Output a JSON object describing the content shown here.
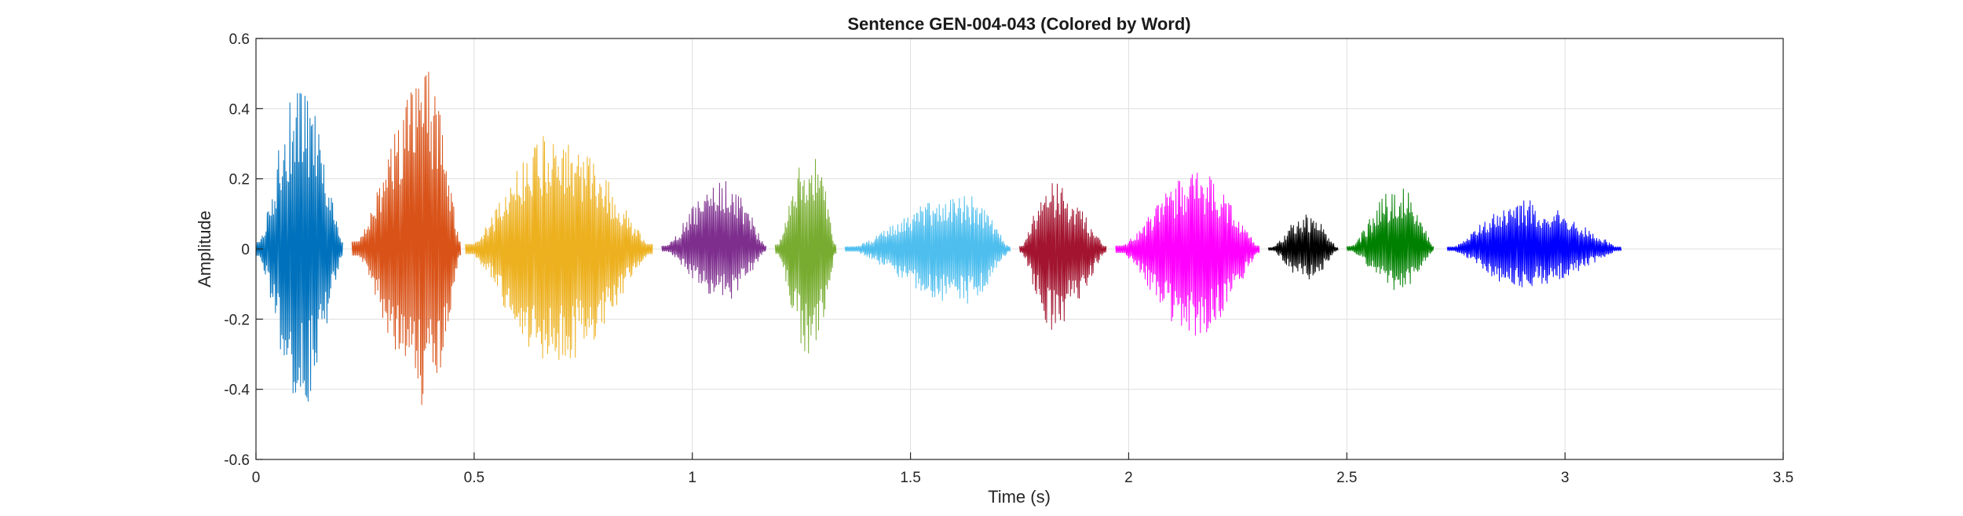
{
  "chart_data": {
    "type": "line",
    "title": "Sentence GEN-004-043 (Colored by Word)",
    "xlabel": "Time (s)",
    "ylabel": "Amplitude",
    "xlim": [
      0,
      3.5
    ],
    "ylim": [
      -0.6,
      0.6
    ],
    "xticks": [
      0,
      0.5,
      1,
      1.5,
      2,
      2.5,
      3,
      3.5
    ],
    "xtick_labels": [
      "0",
      "0.5",
      "1",
      "1.5",
      "2",
      "2.5",
      "3",
      "3.5"
    ],
    "yticks": [
      -0.6,
      -0.4,
      -0.2,
      0,
      0.2,
      0.4,
      0.6
    ],
    "ytick_labels": [
      "-0.6",
      "-0.4",
      "-0.2",
      "0",
      "0.2",
      "0.4",
      "0.6"
    ],
    "grid": true,
    "series": [
      {
        "color": "#0072BD",
        "start": 0.0,
        "end": 0.2,
        "peak_max": 0.47,
        "peak_min": -0.46,
        "peak_time": 0.1
      },
      {
        "color": "#D95319",
        "start": 0.22,
        "end": 0.47,
        "peak_max": 0.51,
        "peak_min": -0.45,
        "peak_time": 0.39
      },
      {
        "color": "#EDB120",
        "start": 0.48,
        "end": 0.91,
        "peak_max": 0.33,
        "peak_min": -0.34,
        "peak_time": 0.68
      },
      {
        "color": "#7E2F8E",
        "start": 0.93,
        "end": 1.17,
        "peak_max": 0.21,
        "peak_min": -0.15,
        "peak_time": 1.07
      },
      {
        "color": "#77AC30",
        "start": 1.19,
        "end": 1.33,
        "peak_max": 0.3,
        "peak_min": -0.32,
        "peak_time": 1.27
      },
      {
        "color": "#4DBEEE",
        "start": 1.35,
        "end": 1.73,
        "peak_max": 0.16,
        "peak_min": -0.16,
        "peak_time": 1.62
      },
      {
        "color": "#A2142F",
        "start": 1.75,
        "end": 1.95,
        "peak_max": 0.19,
        "peak_min": -0.23,
        "peak_time": 1.82
      },
      {
        "color": "#FF00FF",
        "start": 1.97,
        "end": 2.3,
        "peak_max": 0.22,
        "peak_min": -0.26,
        "peak_time": 2.16
      },
      {
        "color": "#000000",
        "start": 2.32,
        "end": 2.48,
        "peak_max": 0.1,
        "peak_min": -0.09,
        "peak_time": 2.41
      },
      {
        "color": "#008000",
        "start": 2.5,
        "end": 2.7,
        "peak_max": 0.18,
        "peak_min": -0.12,
        "peak_time": 2.62
      },
      {
        "color": "#0000FF",
        "start": 2.73,
        "end": 3.13,
        "peak_max": 0.14,
        "peak_min": -0.11,
        "peak_time": 2.9
      }
    ]
  }
}
